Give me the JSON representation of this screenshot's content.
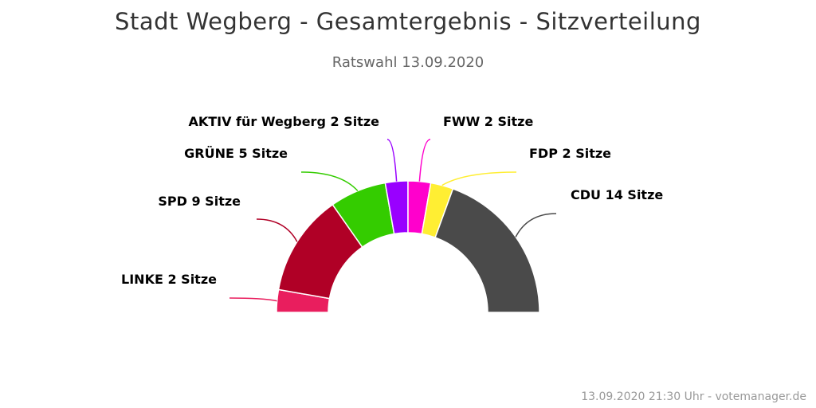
{
  "chart_data": {
    "type": "pie",
    "subtype": "semicircle",
    "title": "Stadt Wegberg - Gesamtergebnis - Sitzverteilung",
    "subtitle": "Ratswahl 13.09.2020",
    "credit": "13.09.2020 21:30 Uhr - votemanager.de",
    "unit": "Sitze",
    "slices": [
      {
        "party": "LINKE",
        "seats": 2,
        "color": "#e91e5e",
        "label": "LINKE 2 Sitze"
      },
      {
        "party": "SPD",
        "seats": 9,
        "color": "#b00026",
        "label": "SPD 9 Sitze"
      },
      {
        "party": "GRÜNE",
        "seats": 5,
        "color": "#34cc00",
        "label": "GRÜNE 5 Sitze"
      },
      {
        "party": "AKTIV für Wegberg",
        "seats": 2,
        "color": "#9900ff",
        "label": "AKTIV für Wegberg 2 Sitze"
      },
      {
        "party": "FWW",
        "seats": 2,
        "color": "#ff00cc",
        "label": "FWW 2 Sitze"
      },
      {
        "party": "FDP",
        "seats": 2,
        "color": "#ffee33",
        "label": "FDP 2 Sitze"
      },
      {
        "party": "CDU",
        "seats": 14,
        "color": "#4a4a4a",
        "label": "CDU 14 Sitze"
      }
    ]
  }
}
